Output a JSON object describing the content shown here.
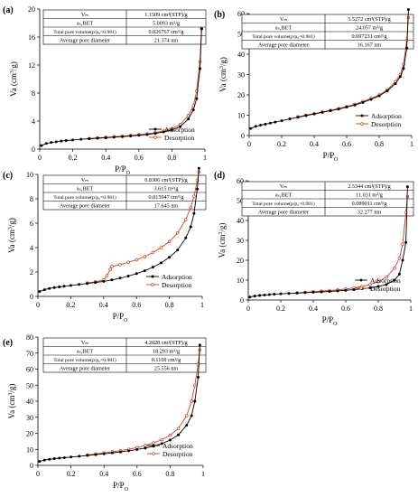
{
  "colors": {
    "adsorption": "#000000",
    "desorption": "#d04020",
    "axis": "#000000"
  },
  "chart_data": [
    {
      "panel": "(a)",
      "type": "line",
      "xlabel": "P/P",
      "xlabel_sub": "O",
      "ylabel": "Va (cm",
      "ylabel_sup": "3",
      "ylabel_tail": "/g)",
      "xlim": [
        0,
        1
      ],
      "ylim": [
        0,
        20
      ],
      "xticks": [
        "0",
        "0.2",
        "0.4",
        "0.6",
        "0.8",
        "1"
      ],
      "yticks": [
        "0",
        "4",
        "8",
        "12",
        "16",
        "20"
      ],
      "ytick_values": [
        0,
        4,
        8,
        12,
        16,
        20
      ],
      "legend": [
        "Adsorption",
        "Desorption"
      ],
      "table": [
        [
          "Vₘ",
          "1.1509 cm³(STP)/g"
        ],
        [
          "aₛ,BET",
          "5.0093 m²/g"
        ],
        [
          "Total pore volume(p/p₀=0.981)",
          "0.026767 cm³/g"
        ],
        [
          "Average pore diameter",
          "21.374 nm"
        ]
      ],
      "series": [
        {
          "name": "Adsorption",
          "x": [
            0.01,
            0.04,
            0.07,
            0.1,
            0.13,
            0.16,
            0.2,
            0.25,
            0.3,
            0.35,
            0.4,
            0.45,
            0.5,
            0.55,
            0.6,
            0.65,
            0.7,
            0.75,
            0.8,
            0.85,
            0.9,
            0.93,
            0.95,
            0.97,
            0.98
          ],
          "y": [
            0.5,
            0.8,
            0.95,
            1.05,
            1.15,
            1.22,
            1.3,
            1.4,
            1.48,
            1.55,
            1.62,
            1.7,
            1.78,
            1.87,
            1.97,
            2.08,
            2.25,
            2.45,
            2.75,
            3.2,
            4.3,
            5.6,
            7.2,
            11.5,
            17.2
          ]
        },
        {
          "name": "Desorption",
          "x": [
            0.98,
            0.97,
            0.95,
            0.93,
            0.9,
            0.85,
            0.8,
            0.75,
            0.7,
            0.65,
            0.6,
            0.55,
            0.5,
            0.45,
            0.4,
            0.35,
            0.3
          ],
          "y": [
            17.2,
            12.5,
            8.3,
            6.2,
            4.8,
            3.5,
            2.95,
            2.6,
            2.35,
            2.18,
            2.05,
            1.95,
            1.85,
            1.77,
            1.69,
            1.6,
            1.5
          ]
        }
      ]
    },
    {
      "panel": "(b)",
      "type": "line",
      "xlabel": "P/P",
      "xlabel_sub": "O",
      "ylabel": "Va (cm",
      "ylabel_sup": "3",
      "ylabel_tail": "/g)",
      "xlim": [
        0,
        1
      ],
      "ylim": [
        0,
        60
      ],
      "xticks": [
        "0",
        "0.2",
        "0.4",
        "0.6",
        "0.8",
        "1"
      ],
      "yticks": [
        "0",
        "10",
        "20",
        "30",
        "40",
        "50",
        "60"
      ],
      "ytick_values": [
        0,
        10,
        20,
        30,
        40,
        50,
        60
      ],
      "legend": [
        "Adsorption",
        "Desorption"
      ],
      "table": [
        [
          "Vₘ",
          "5.5272 cm³(STP)/g"
        ],
        [
          "aₛ,BET",
          "24.057 m²/g"
        ],
        [
          "Total pore volume(p/p₀=0.981)",
          "0.097231 cm³/g"
        ],
        [
          "Average pore diameter",
          "16.167 nm"
        ]
      ],
      "series": [
        {
          "name": "Adsorption",
          "x": [
            0.01,
            0.04,
            0.07,
            0.1,
            0.13,
            0.16,
            0.2,
            0.25,
            0.3,
            0.35,
            0.4,
            0.45,
            0.5,
            0.55,
            0.6,
            0.65,
            0.7,
            0.75,
            0.8,
            0.85,
            0.9,
            0.93,
            0.95,
            0.97,
            0.98
          ],
          "y": [
            3.5,
            4.5,
            5.1,
            5.6,
            6.1,
            6.6,
            7.3,
            8.2,
            9.0,
            9.8,
            10.6,
            11.4,
            12.2,
            13.0,
            14.0,
            15.0,
            16.3,
            17.8,
            19.5,
            22,
            25.5,
            29,
            33,
            43,
            62
          ]
        },
        {
          "name": "Desorption",
          "x": [
            0.98,
            0.97,
            0.95,
            0.93,
            0.9,
            0.85,
            0.8,
            0.75,
            0.7,
            0.65,
            0.6,
            0.55,
            0.5,
            0.45,
            0.4,
            0.35,
            0.3
          ],
          "y": [
            58,
            47,
            35,
            30,
            26.5,
            22.5,
            20,
            18.2,
            16.8,
            15.4,
            14.3,
            13.3,
            12.4,
            11.6,
            10.8,
            10.0,
            9.2
          ]
        }
      ]
    },
    {
      "panel": "(c)",
      "type": "line",
      "xlabel": "P/P",
      "xlabel_sub": "O",
      "ylabel": "Va (cm",
      "ylabel_sup": "3",
      "ylabel_tail": "/g)",
      "xlim": [
        0,
        1
      ],
      "ylim": [
        0,
        10
      ],
      "xticks": [
        "0",
        "0.2",
        "0.4",
        "0.6",
        "0.8",
        "1"
      ],
      "yticks": [
        "0",
        "2",
        "4",
        "6",
        "8",
        "10"
      ],
      "ytick_values": [
        0,
        2,
        4,
        6,
        8,
        10
      ],
      "legend": [
        "Adsorption",
        "Desorption"
      ],
      "table": [
        [
          "Vₘ",
          "0.8306 cm³(STP)/g"
        ],
        [
          "aₛ,BET",
          "3.615 m²/g"
        ],
        [
          "Total pore volume(p/p₀=0.981)",
          "0.015947 cm³/g"
        ],
        [
          "Average pore diameter",
          "17.645 nm"
        ]
      ],
      "series": [
        {
          "name": "Adsorption",
          "x": [
            0.01,
            0.04,
            0.07,
            0.1,
            0.13,
            0.16,
            0.2,
            0.25,
            0.3,
            0.35,
            0.4,
            0.45,
            0.5,
            0.55,
            0.6,
            0.65,
            0.7,
            0.75,
            0.8,
            0.85,
            0.9,
            0.93,
            0.95,
            0.97,
            0.98
          ],
          "y": [
            0.4,
            0.55,
            0.65,
            0.72,
            0.78,
            0.83,
            0.9,
            0.98,
            1.06,
            1.14,
            1.23,
            1.35,
            1.5,
            1.67,
            1.87,
            2.1,
            2.4,
            2.75,
            3.2,
            3.8,
            4.8,
            5.7,
            6.8,
            8.8,
            10.5
          ]
        },
        {
          "name": "Desorption",
          "x": [
            0.98,
            0.97,
            0.95,
            0.93,
            0.9,
            0.85,
            0.8,
            0.75,
            0.7,
            0.65,
            0.6,
            0.55,
            0.5,
            0.45,
            0.44,
            0.42,
            0.4,
            0.35,
            0.3
          ],
          "y": [
            10.2,
            9.5,
            8.2,
            7.3,
            6.3,
            5.2,
            4.5,
            4.0,
            3.6,
            3.25,
            3.0,
            2.8,
            2.6,
            2.45,
            2.2,
            1.7,
            1.35,
            1.2,
            1.1
          ]
        }
      ]
    },
    {
      "panel": "(d)",
      "type": "line",
      "xlabel": "P/P",
      "xlabel_sub": "O",
      "ylabel": "Va (cm",
      "ylabel_sup": "3",
      "ylabel_tail": "/g)",
      "xlim": [
        0,
        1
      ],
      "ylim": [
        0,
        60
      ],
      "xticks": [
        "0",
        "0.2",
        "0.4",
        "0.6",
        "0.8",
        "1"
      ],
      "yticks": [
        "0",
        "10",
        "20",
        "30",
        "40",
        "50",
        "60"
      ],
      "ytick_values": [
        0,
        10,
        20,
        30,
        40,
        50,
        60
      ],
      "legend": [
        "Adsorption",
        "Desorption"
      ],
      "table": [
        [
          "Vₘ",
          "2.5344 cm³(STP)/g"
        ],
        [
          "aₛ,BET",
          "11.031 m²/g"
        ],
        [
          "Total pore volume(p/p₀=0.981)",
          "0.089011 cm³/g"
        ],
        [
          "Average pore diameter",
          "32.277 nm"
        ]
      ],
      "series": [
        {
          "name": "Adsorption",
          "x": [
            0.01,
            0.04,
            0.07,
            0.1,
            0.13,
            0.16,
            0.2,
            0.25,
            0.3,
            0.35,
            0.4,
            0.45,
            0.5,
            0.55,
            0.6,
            0.65,
            0.7,
            0.75,
            0.8,
            0.85,
            0.9,
            0.93,
            0.95,
            0.97,
            0.98
          ],
          "y": [
            1.5,
            2.0,
            2.3,
            2.5,
            2.7,
            2.9,
            3.1,
            3.3,
            3.5,
            3.7,
            3.9,
            4.1,
            4.3,
            4.6,
            4.9,
            5.2,
            5.6,
            6.1,
            6.8,
            7.8,
            10,
            13,
            20,
            29,
            57
          ]
        },
        {
          "name": "Desorption",
          "x": [
            0.98,
            0.97,
            0.95,
            0.93,
            0.9,
            0.85,
            0.8,
            0.75,
            0.7,
            0.65,
            0.6,
            0.55,
            0.5,
            0.45,
            0.4,
            0.35,
            0.3
          ],
          "y": [
            52,
            44,
            28,
            21,
            16,
            11.5,
            9.2,
            7.8,
            6.8,
            6.1,
            5.5,
            5.1,
            4.8,
            4.5,
            4.2,
            3.9,
            3.6
          ]
        }
      ]
    },
    {
      "panel": "(e)",
      "type": "line",
      "xlabel": "P/P",
      "xlabel_sub": "O",
      "ylabel": "Va (cm",
      "ylabel_sup": "3",
      "ylabel_tail": "/g)",
      "xlim": [
        0,
        1
      ],
      "ylim": [
        0,
        80
      ],
      "xticks": [
        "0",
        "0.2",
        "0.4",
        "0.6",
        "0.8",
        "1"
      ],
      "yticks": [
        "0",
        "10",
        "20",
        "30",
        "40",
        "50",
        "60",
        "70",
        "80"
      ],
      "ytick_values": [
        0,
        10,
        20,
        30,
        40,
        50,
        60,
        70,
        80
      ],
      "legend": [
        "Adsorption",
        "Desorption"
      ],
      "table": [
        [
          "Vₘ",
          "4.2028 cm³(STP)/g"
        ],
        [
          "aₛ,BET",
          "18.293 m²/g"
        ],
        [
          "Total pore volume(p/p₀=0.981)",
          "0.1169 cm³/g"
        ],
        [
          "Average pore diameter",
          "25.556 nm"
        ]
      ],
      "series": [
        {
          "name": "Adsorption",
          "x": [
            0.01,
            0.04,
            0.07,
            0.1,
            0.13,
            0.16,
            0.2,
            0.25,
            0.3,
            0.35,
            0.4,
            0.45,
            0.5,
            0.55,
            0.6,
            0.65,
            0.7,
            0.75,
            0.8,
            0.85,
            0.9,
            0.93,
            0.95,
            0.97,
            0.98
          ],
          "y": [
            2.5,
            3.3,
            3.8,
            4.2,
            4.5,
            4.8,
            5.2,
            5.7,
            6.2,
            6.7,
            7.2,
            7.8,
            8.4,
            9.1,
            9.9,
            10.8,
            12,
            13.6,
            15.8,
            19,
            25,
            31,
            40,
            55,
            75
          ]
        },
        {
          "name": "Desorption",
          "x": [
            0.98,
            0.97,
            0.95,
            0.93,
            0.9,
            0.85,
            0.8,
            0.75,
            0.7,
            0.65,
            0.6,
            0.55,
            0.5,
            0.45,
            0.4,
            0.35,
            0.3
          ],
          "y": [
            72,
            63,
            50,
            40,
            31,
            23,
            18.8,
            16,
            14,
            12.4,
            11.1,
            10.1,
            9.2,
            8.5,
            7.8,
            7.1,
            6.5
          ]
        }
      ]
    }
  ]
}
